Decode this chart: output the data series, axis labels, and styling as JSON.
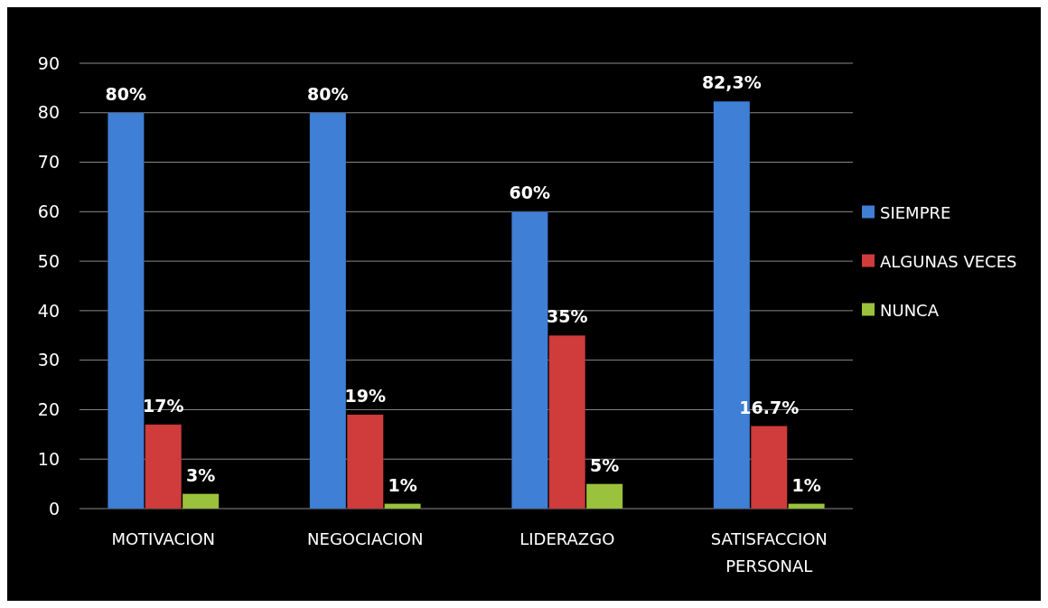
{
  "chart_data": {
    "type": "bar",
    "categories": [
      "MOTIVACION",
      "NEGOCIACION",
      "LIDERAZGO",
      "SATISFACCION PERSONAL"
    ],
    "series": [
      {
        "name": "SIEMPRE",
        "color": "#3f7fd6",
        "values": [
          80,
          80,
          60,
          82.3
        ],
        "value_labels": [
          "80%",
          "80%",
          "60%",
          "82,3%"
        ]
      },
      {
        "name": "ALGUNAS VECES",
        "color": "#d03b3b",
        "values": [
          17,
          19,
          35,
          16.7
        ],
        "value_labels": [
          "17%",
          "19%",
          "35%",
          "16.7%"
        ]
      },
      {
        "name": "NUNCA",
        "color": "#9bc23c",
        "values": [
          3,
          1,
          5,
          1
        ],
        "value_labels": [
          "3%",
          "1%",
          "5%",
          "1%"
        ]
      }
    ],
    "ylim": [
      0,
      90
    ],
    "yticks": [
      0,
      10,
      20,
      30,
      40,
      50,
      60,
      70,
      80,
      90
    ],
    "grid": "y",
    "legend": "right"
  }
}
